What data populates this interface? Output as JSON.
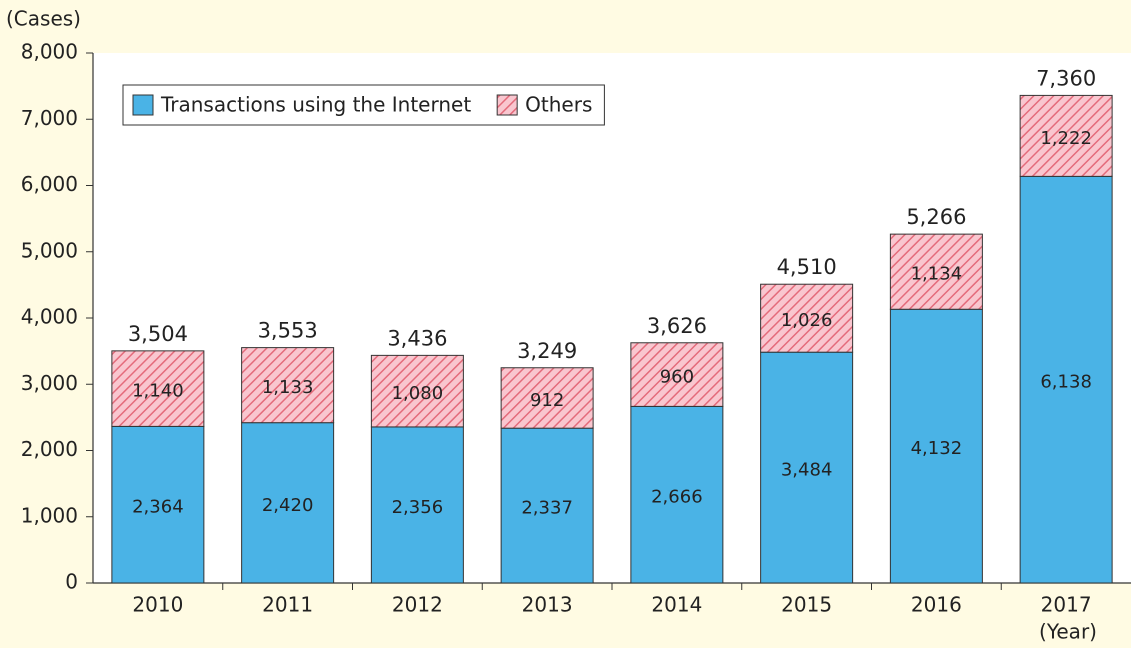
{
  "chart_data": {
    "type": "stacked_bar",
    "y_axis_label": "(Cases)",
    "x_axis_label": "(Year)",
    "categories": [
      "2010",
      "2011",
      "2012",
      "2013",
      "2014",
      "2015",
      "2016",
      "2017"
    ],
    "series": [
      {
        "name": "Transactions using the Internet",
        "color": "#4ab3e6",
        "hatch": false,
        "values": [
          2364,
          2420,
          2356,
          2337,
          2666,
          3484,
          4132,
          6138
        ],
        "value_labels": [
          "2,364",
          "2,420",
          "2,356",
          "2,337",
          "2,666",
          "3,484",
          "4,132",
          "6,138"
        ]
      },
      {
        "name": "Others",
        "color": "#f7b8c3",
        "hatch": true,
        "values": [
          1140,
          1133,
          1080,
          912,
          960,
          1026,
          1134,
          1222
        ],
        "value_labels": [
          "1,140",
          "1,133",
          "1,080",
          "912",
          "960",
          "1,026",
          "1,134",
          "1,222"
        ]
      }
    ],
    "totals": [
      3504,
      3553,
      3436,
      3249,
      3626,
      4510,
      5266,
      7360
    ],
    "total_labels": [
      "3,504",
      "3,553",
      "3,436",
      "3,249",
      "3,626",
      "4,510",
      "5,266",
      "7,360"
    ],
    "ylim": [
      0,
      8000
    ],
    "yticks": [
      0,
      {
        "value": 1000,
        "label": "1,000"
      },
      {
        "value": 2000,
        "label": "2,000"
      },
      {
        "value": 3000,
        "label": "3,000"
      },
      {
        "value": 4000,
        "label": "4,000"
      },
      {
        "value": 5000,
        "label": "5,000"
      },
      {
        "value": 6000,
        "label": "6,000"
      },
      {
        "value": 7000,
        "label": "7,000"
      },
      {
        "value": 8000,
        "label": "8,000"
      }
    ],
    "legend": "upper left"
  }
}
